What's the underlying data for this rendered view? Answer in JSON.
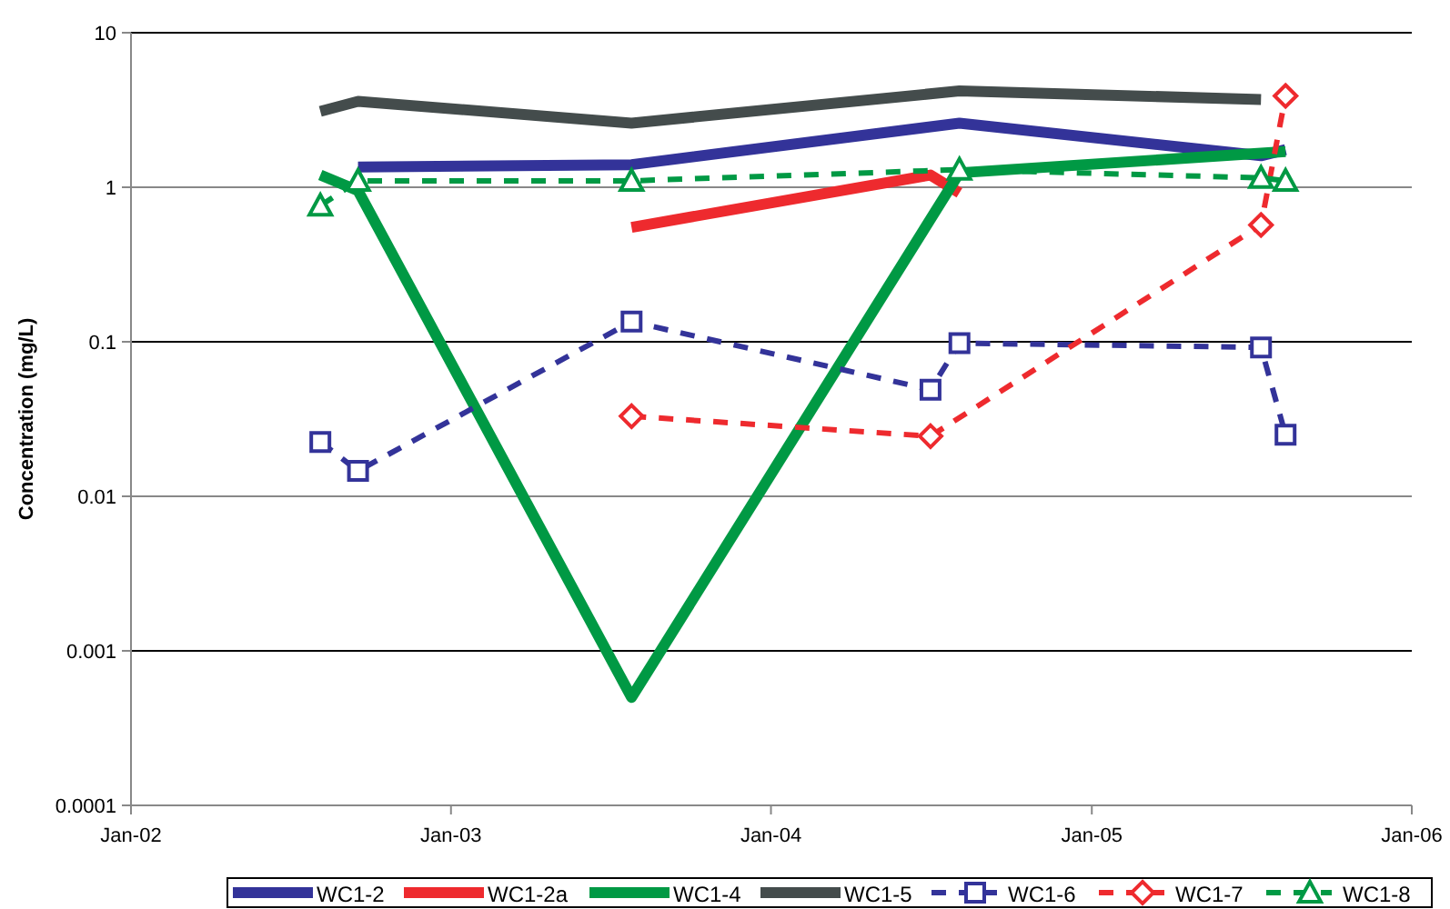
{
  "chart_data": {
    "type": "line",
    "ylabel": "Concentration (mg/L)",
    "log": "y",
    "grid": "y",
    "legend": "bottom",
    "xlim": [
      "2002-01-01",
      "2006-01-01"
    ],
    "xticks": [
      {
        "value": "2002-01-01",
        "label": "Jan-02"
      },
      {
        "value": "2003-01-01",
        "label": "Jan-03"
      },
      {
        "value": "2004-01-01",
        "label": "Jan-04"
      },
      {
        "value": "2005-01-01",
        "label": "Jan-05"
      },
      {
        "value": "2006-01-01",
        "label": "Jan-06"
      }
    ],
    "ylim": [
      0.0001,
      10
    ],
    "yticks": [
      0.0001,
      0.001,
      0.01,
      0.1,
      1,
      10
    ],
    "series": [
      {
        "name": "WC1-2",
        "color": "#333399",
        "line_style": "solid",
        "marker": "none",
        "x": [
          "2002-09-17",
          "2003-07-26",
          "2004-08-03",
          "2005-07-13",
          "2005-08-10"
        ],
        "values": [
          1.35,
          1.4,
          2.6,
          1.6,
          1.75
        ]
      },
      {
        "name": "WC1-2a",
        "color": "#ee2a2e",
        "line_style": "solid",
        "marker": "none",
        "x": [
          "2003-07-26",
          "2004-07-01",
          "2004-08-03"
        ],
        "values": [
          0.55,
          1.2,
          0.92
        ]
      },
      {
        "name": "WC1-4",
        "color": "#009944",
        "line_style": "solid",
        "marker": "none",
        "x": [
          "2002-08-05",
          "2002-09-17",
          "2003-07-26",
          "2004-08-03",
          "2005-08-10"
        ],
        "values": [
          1.2,
          0.95,
          0.0005,
          1.24,
          1.7
        ]
      },
      {
        "name": "WC1-5",
        "color": "#444c4c",
        "line_style": "solid",
        "marker": "none",
        "x": [
          "2002-08-05",
          "2002-09-17",
          "2003-07-26",
          "2004-08-03",
          "2005-07-13"
        ],
        "values": [
          3.1,
          3.6,
          2.6,
          4.2,
          3.7
        ]
      },
      {
        "name": "WC1-6",
        "color": "#333399",
        "line_style": "dashed",
        "marker": "square",
        "x": [
          "2002-08-05",
          "2002-09-17",
          "2003-07-26",
          "2004-07-01",
          "2004-08-03",
          "2005-07-13",
          "2005-08-10"
        ],
        "values": [
          0.0225,
          0.0146,
          0.135,
          0.049,
          0.098,
          0.092,
          0.025
        ]
      },
      {
        "name": "WC1-7",
        "color": "#ee2a2e",
        "line_style": "dashed",
        "marker": "diamond",
        "x": [
          "2003-07-26",
          "2004-07-01",
          "2005-07-13",
          "2005-08-10"
        ],
        "values": [
          0.033,
          0.0245,
          0.57,
          3.9
        ]
      },
      {
        "name": "WC1-8",
        "color": "#009944",
        "line_style": "dashed",
        "marker": "triangle",
        "x": [
          "2002-08-05",
          "2002-09-17",
          "2003-07-26",
          "2004-08-03",
          "2005-07-13",
          "2005-08-10"
        ],
        "values": [
          0.76,
          1.1,
          1.1,
          1.3,
          1.15,
          1.1
        ]
      }
    ]
  }
}
